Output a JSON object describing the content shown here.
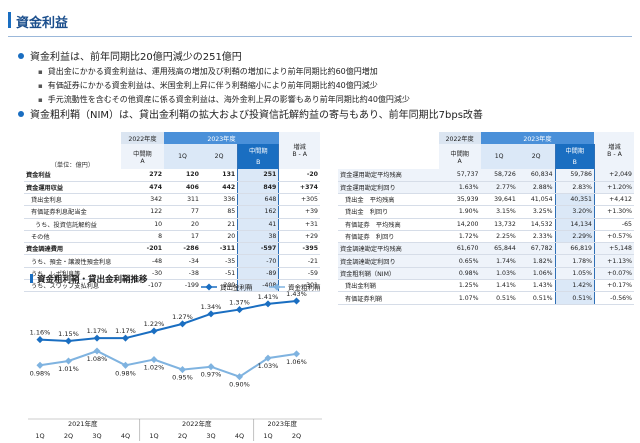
{
  "title": "資金利益",
  "bullets": [
    {
      "text": "資金利益は、前年同期比20億円減少の251億円"
    },
    {
      "text": "資金粗利鞘（NIM）は、貸出金利鞘の拡大および投資信託解約益の寄与もあり、前年同期比7bps改善"
    }
  ],
  "sub_bullets": [
    "貸出金にかかる資金利益は、運用残高の増加及び利鞘の増加により前年同期比約60億円増加",
    "有価証券にかかる資金利益は、米国金利上昇に伴う利鞘縮小により前年同期比約40億円減少",
    "手元流動性を含むその他資産に係る資金利益は、海外金利上昇の影響もあり前年同期比約40億円減少"
  ],
  "left_table": {
    "unit": "（単位：億円）",
    "h_2022": "2022年度",
    "h_2022_sub": "中間期",
    "h_2022_A": "A",
    "h_2023": "2023年度",
    "h_1q": "1Q",
    "h_2q": "2Q",
    "h_mid": "中間期",
    "h_B": "B",
    "h_zog": "増減",
    "h_ba": "B - A",
    "rows": [
      {
        "label": "資金利益",
        "a": "272",
        "q1": "120",
        "q2": "131",
        "b": "251",
        "d": "-20",
        "bold": true,
        "ind": 0
      },
      {
        "label": "資金運用収益",
        "a": "474",
        "q1": "406",
        "q2": "442",
        "b": "849",
        "d": "+374",
        "bold": true,
        "ind": 0
      },
      {
        "label": "貸出金利息",
        "a": "342",
        "q1": "311",
        "q2": "336",
        "b": "648",
        "d": "+305",
        "bold": false,
        "ind": 1
      },
      {
        "label": "有価証券利息配当金",
        "a": "122",
        "q1": "77",
        "q2": "85",
        "b": "162",
        "d": "+39",
        "bold": false,
        "ind": 1
      },
      {
        "label": "うち、投資信託解約益",
        "a": "10",
        "q1": "20",
        "q2": "21",
        "b": "41",
        "d": "+31",
        "bold": false,
        "ind": 2
      },
      {
        "label": "その他",
        "a": "8",
        "q1": "17",
        "q2": "20",
        "b": "38",
        "d": "+29",
        "bold": false,
        "ind": 1
      },
      {
        "label": "資金調達費用",
        "a": "-201",
        "q1": "-286",
        "q2": "-311",
        "b": "-597",
        "d": "-395",
        "bold": true,
        "ind": 0
      },
      {
        "label": "うち、預金・譲渡性預金利息",
        "a": "-48",
        "q1": "-34",
        "q2": "-35",
        "b": "-70",
        "d": "-21",
        "bold": false,
        "ind": 1
      },
      {
        "label": "うち、レポ利息等",
        "a": "-30",
        "q1": "-38",
        "q2": "-51",
        "b": "-89",
        "d": "-59",
        "bold": false,
        "ind": 1
      },
      {
        "label": "うち、スワップ支払利息",
        "a": "-107",
        "q1": "-199",
        "q2": "-209",
        "b": "-408",
        "d": "-301",
        "bold": false,
        "ind": 1
      }
    ]
  },
  "right_table": {
    "rows": [
      {
        "label": "資金運用勘定平均残高",
        "a": "57,737",
        "q1": "58,726",
        "q2": "60,834",
        "b": "59,786",
        "d": "+2,049",
        "ind": 0,
        "hl": true
      },
      {
        "label": "資金運用勘定利回り",
        "a": "1.63%",
        "q1": "2.77%",
        "q2": "2.88%",
        "b": "2.83%",
        "d": "+1.20%",
        "ind": 0,
        "hl": true
      },
      {
        "label": "貸出金　平均残高",
        "a": "35,939",
        "q1": "39,641",
        "q2": "41,054",
        "b": "40,351",
        "d": "+4,412",
        "ind": 1,
        "hl": false
      },
      {
        "label": "貸出金　利回り",
        "a": "1.90%",
        "q1": "3.15%",
        "q2": "3.25%",
        "b": "3.20%",
        "d": "+1.30%",
        "ind": 1,
        "hl": false
      },
      {
        "label": "有価証券　平均残高",
        "a": "14,200",
        "q1": "13,732",
        "q2": "14,532",
        "b": "14,134",
        "d": "-65",
        "ind": 1,
        "hl": false
      },
      {
        "label": "有価証券　利回り",
        "a": "1.72%",
        "q1": "2.25%",
        "q2": "2.33%",
        "b": "2.29%",
        "d": "+0.57%",
        "ind": 1,
        "hl": false
      },
      {
        "label": "資金調達勘定平均残高",
        "a": "61,670",
        "q1": "65,844",
        "q2": "67,782",
        "b": "66,819",
        "d": "+5,148",
        "ind": 0,
        "hl": true
      },
      {
        "label": "資金調達勘定利回り",
        "a": "0.65%",
        "q1": "1.74%",
        "q2": "1.82%",
        "b": "1.78%",
        "d": "+1.13%",
        "ind": 0,
        "hl": true
      },
      {
        "label": "資金粗利鞘（NIM）",
        "a": "0.98%",
        "q1": "1.03%",
        "q2": "1.06%",
        "b": "1.05%",
        "d": "+0.07%",
        "ind": 0,
        "hl": true
      },
      {
        "label": "貸出金利鞘",
        "a": "1.25%",
        "q1": "1.41%",
        "q2": "1.43%",
        "b": "1.42%",
        "d": "+0.17%",
        "ind": 1,
        "hl": false
      },
      {
        "label": "有価証券利鞘",
        "a": "1.07%",
        "q1": "0.51%",
        "q2": "0.51%",
        "b": "0.51%",
        "d": "-0.56%",
        "ind": 1,
        "hl": false
      }
    ]
  },
  "chart_title": "資金粗利鞘・貸出金利鞘推移",
  "chart_data": {
    "type": "line",
    "title": "資金粗利鞘・貸出金利鞘推移",
    "categories": [
      "1Q",
      "2Q",
      "3Q",
      "4Q",
      "1Q",
      "2Q",
      "3Q",
      "4Q",
      "1Q",
      "2Q"
    ],
    "year_labels": [
      "2021年度",
      "2022年度",
      "2023年度"
    ],
    "legend_placement": "top-right",
    "grid": false,
    "ylim": [
      0.8,
      1.5
    ],
    "series": [
      {
        "name": "貸出金利鞘",
        "values": [
          1.16,
          1.15,
          1.17,
          1.17,
          1.22,
          1.27,
          1.34,
          1.37,
          1.41,
          1.43
        ],
        "labels": [
          "1.16%",
          "1.15%",
          "1.17%",
          "1.17%",
          "1.22%",
          "1.27%",
          "1.34%",
          "1.37%",
          "1.41%",
          "1.43%"
        ],
        "color": "#1a6ec1"
      },
      {
        "name": "資金粗利鞘",
        "values": [
          0.98,
          1.01,
          1.08,
          0.98,
          1.02,
          0.95,
          0.97,
          0.9,
          1.03,
          1.06
        ],
        "labels": [
          "0.98%",
          "1.01%",
          "1.08%",
          "0.98%",
          "1.02%",
          "0.95%",
          "0.97%",
          "0.90%",
          "1.03%",
          "1.06%"
        ],
        "color": "#7fb3e0"
      }
    ]
  },
  "colors": {
    "accent": "#1a6ec1",
    "header_2023": "#4a90d9",
    "header_2022": "#dbe5f1"
  }
}
